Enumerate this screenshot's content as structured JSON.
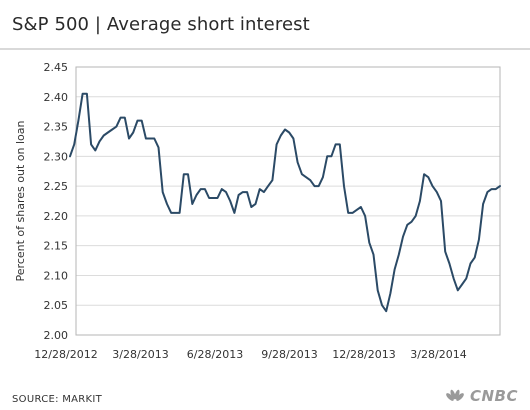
{
  "header": {
    "title": "S&P 500 | Average short interest"
  },
  "footer": {
    "source": "SOURCE: MARKIT",
    "brand": "CNBC"
  },
  "colors": {
    "line": "#2b4a66",
    "grid": "#dcdcdc",
    "axis": "#b5b5b5",
    "text": "#333333"
  },
  "chart_data": {
    "type": "line",
    "title": "S&P 500 | Average short interest",
    "xlabel": "",
    "ylabel": "Percent of shares out on loan",
    "ylim": [
      2.0,
      2.45
    ],
    "yticks": [
      2.45,
      2.4,
      2.35,
      2.3,
      2.25,
      2.2,
      2.15,
      2.1,
      2.05,
      2.0
    ],
    "ytick_labels": [
      "2.45",
      "2.40",
      "2.35",
      "2.30",
      "2.25",
      "2.20",
      "2.15",
      "2.10",
      "2.05",
      "2.00"
    ],
    "xtick_labels": [
      "12/28/2012",
      "3/28/2013",
      "6/28/2013",
      "9/28/2013",
      "12/28/2013",
      "3/28/2014"
    ],
    "grid": "horizontal",
    "series": [
      {
        "values": [
          2.3,
          2.32,
          2.36,
          2.405,
          2.405,
          2.32,
          2.31,
          2.325,
          2.335,
          2.34,
          2.345,
          2.35,
          2.365,
          2.365,
          2.33,
          2.34,
          2.36,
          2.36,
          2.33,
          2.33,
          2.33,
          2.315,
          2.24,
          2.22,
          2.205,
          2.205,
          2.205,
          2.27,
          2.27,
          2.22,
          2.235,
          2.245,
          2.245,
          2.23,
          2.23,
          2.23,
          2.245,
          2.24,
          2.225,
          2.205,
          2.235,
          2.24,
          2.24,
          2.215,
          2.22,
          2.245,
          2.24,
          2.25,
          2.26,
          2.32,
          2.335,
          2.345,
          2.34,
          2.33,
          2.29,
          2.27,
          2.265,
          2.26,
          2.25,
          2.25,
          2.265,
          2.3,
          2.3,
          2.32,
          2.32,
          2.25,
          2.205,
          2.205,
          2.21,
          2.215,
          2.2,
          2.155,
          2.135,
          2.075,
          2.05,
          2.04,
          2.07,
          2.11,
          2.135,
          2.165,
          2.185,
          2.19,
          2.2,
          2.225,
          2.27,
          2.265,
          2.25,
          2.24,
          2.225,
          2.14,
          2.12,
          2.095,
          2.075,
          2.085,
          2.095,
          2.12,
          2.13,
          2.16,
          2.22,
          2.24,
          2.245,
          2.245,
          2.25
        ]
      }
    ]
  }
}
